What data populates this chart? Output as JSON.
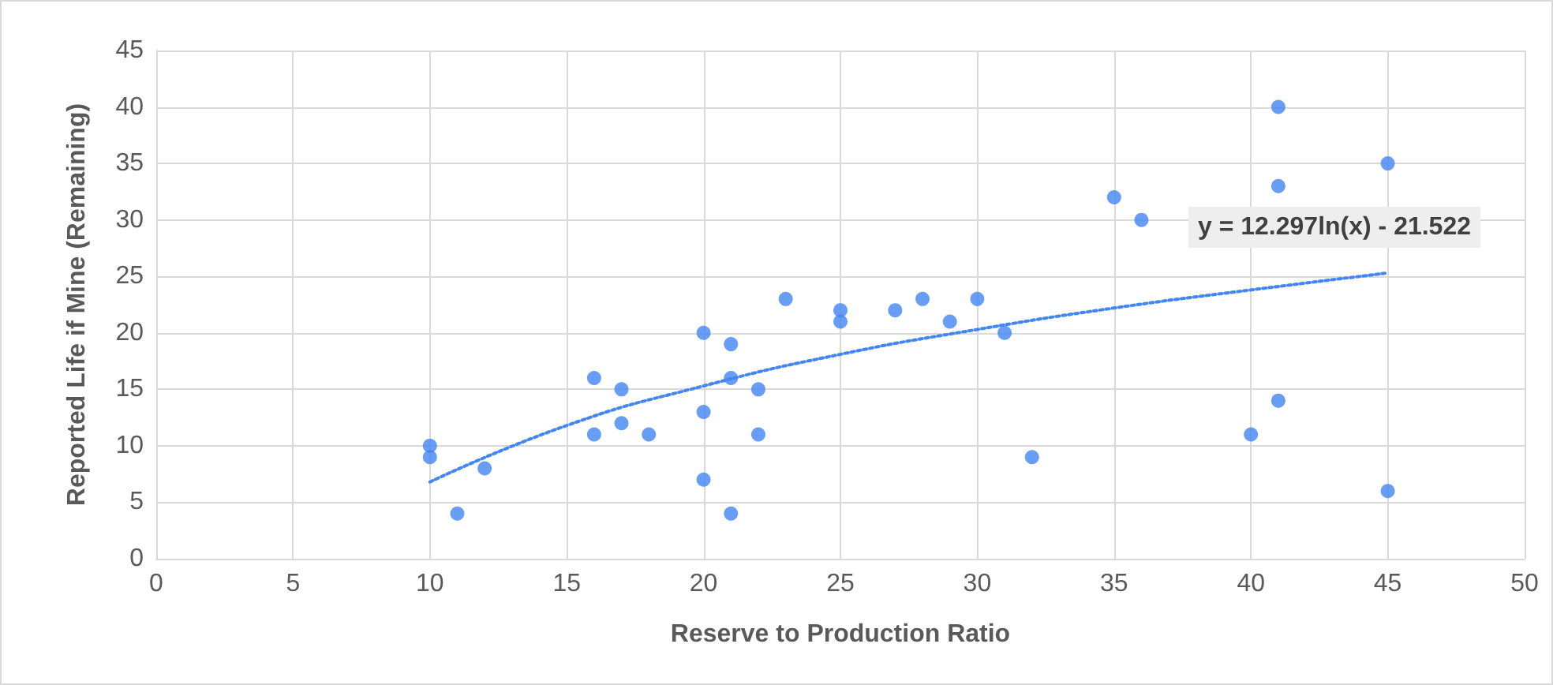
{
  "chart_data": {
    "type": "scatter",
    "xlabel": "Reserve to Production Ratio",
    "ylabel": "Reported Life if Mine (Remaining)",
    "xlim": [
      0,
      50
    ],
    "xticks": [
      0,
      5,
      10,
      15,
      20,
      25,
      30,
      35,
      40,
      45,
      50
    ],
    "ylim": [
      0,
      45
    ],
    "yticks": [
      0,
      5,
      10,
      15,
      20,
      25,
      30,
      35,
      40,
      45
    ],
    "grid": true,
    "marker": "circle",
    "annotations": [
      "y = 12.297ln(x) - 21.522"
    ],
    "series": [
      {
        "color": "#4285f4",
        "x": [
          10,
          10,
          11,
          12,
          16,
          16,
          17,
          17,
          18,
          20,
          20,
          20,
          21,
          21,
          21,
          22,
          22,
          23,
          25,
          25,
          27,
          28,
          29,
          30,
          31,
          32,
          35,
          36,
          40,
          41,
          41,
          41,
          45,
          45
        ],
        "values": [
          10,
          9,
          4,
          8,
          16,
          11,
          15,
          12,
          11,
          20,
          13,
          7,
          19,
          16,
          4,
          15,
          11,
          23,
          22,
          21,
          22,
          23,
          21,
          23,
          20,
          9,
          32,
          30,
          11,
          40,
          33,
          14,
          35,
          6
        ]
      },
      {
        "type": "line",
        "color": "#4285f4",
        "line_style": "dotted",
        "marker": "none",
        "x": [
          10,
          15,
          20,
          25,
          30,
          35,
          40,
          45
        ],
        "values": [
          6.8,
          11.8,
          15.3,
          18.1,
          20.3,
          22.2,
          23.8,
          25.3
        ]
      }
    ]
  }
}
